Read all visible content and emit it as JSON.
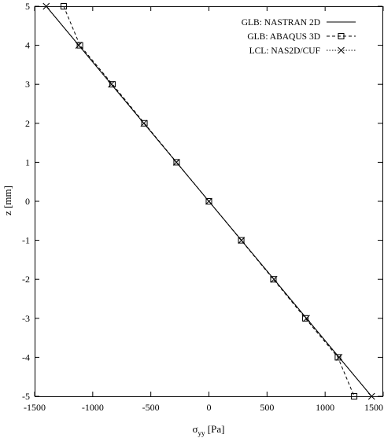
{
  "chart_data": {
    "type": "line",
    "xlabel_main": "σ",
    "xlabel_sub": "yy",
    "xlabel_unit": " [Pa]",
    "ylabel": "z [mm]",
    "xlim": [
      -1500,
      1500
    ],
    "ylim": [
      -5,
      5
    ],
    "xticks": [
      -1500,
      -1000,
      -500,
      0,
      500,
      1000,
      1500
    ],
    "yticks": [
      -5,
      -4,
      -3,
      -2,
      -1,
      0,
      1,
      2,
      3,
      4,
      5
    ],
    "grid": false,
    "legend_position": "top-right",
    "series": [
      {
        "name": "GLB: NASTRAN 2D",
        "style": "solid",
        "marker": "none",
        "points": [
          [
            -1400,
            5
          ],
          [
            1400,
            -5
          ]
        ]
      },
      {
        "name": "GLB: ABAQUS 3D",
        "style": "dashed",
        "marker": "square",
        "points": [
          [
            -1250,
            5
          ],
          [
            -1110,
            4
          ],
          [
            -830,
            3
          ],
          [
            -555,
            2
          ],
          [
            -278,
            1
          ],
          [
            0,
            0
          ],
          [
            278,
            -1
          ],
          [
            555,
            -2
          ],
          [
            830,
            -3
          ],
          [
            1110,
            -4
          ],
          [
            1250,
            -5
          ]
        ]
      },
      {
        "name": "LCL: NAS2D/CUF",
        "style": "dotted",
        "marker": "x",
        "points": [
          [
            -1400,
            5
          ],
          [
            -1120,
            4
          ],
          [
            -840,
            3
          ],
          [
            -560,
            2
          ],
          [
            -280,
            1
          ],
          [
            0,
            0
          ],
          [
            280,
            -1
          ],
          [
            560,
            -2
          ],
          [
            840,
            -3
          ],
          [
            1120,
            -4
          ],
          [
            1400,
            -5
          ]
        ]
      }
    ]
  }
}
